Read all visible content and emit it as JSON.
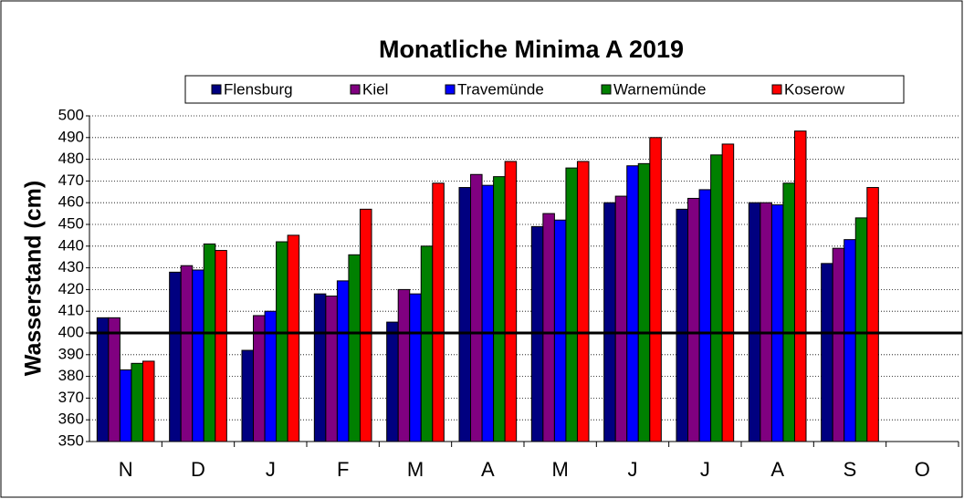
{
  "chart_data": {
    "type": "bar",
    "title": "Monatliche Minima A 2019",
    "y_label": "Wasserstand  (cm)",
    "categories": [
      "N",
      "D",
      "J",
      "F",
      "M",
      "A",
      "M",
      "J",
      "J",
      "A",
      "S",
      "O"
    ],
    "series": [
      {
        "name": "Flensburg",
        "color": "#000080",
        "values": [
          407,
          428,
          392,
          418,
          405,
          467,
          449,
          460,
          457,
          460,
          432,
          null
        ]
      },
      {
        "name": "Kiel",
        "color": "#800080",
        "values": [
          407,
          431,
          408,
          417,
          420,
          473,
          455,
          463,
          462,
          460,
          439,
          null
        ]
      },
      {
        "name": "Travemünde",
        "color": "#0000ff",
        "values": [
          383,
          429,
          410,
          424,
          418,
          468,
          452,
          477,
          466,
          459,
          443,
          null
        ]
      },
      {
        "name": "Warnemünde",
        "color": "#008000",
        "values": [
          386,
          441,
          442,
          436,
          440,
          472,
          476,
          478,
          482,
          469,
          453,
          null
        ]
      },
      {
        "name": "Koserow",
        "color": "#ff0000",
        "values": [
          387,
          438,
          445,
          457,
          469,
          479,
          479,
          490,
          487,
          493,
          467,
          null
        ]
      }
    ],
    "reference_line": 400,
    "ylim": [
      350,
      500
    ],
    "yticks": [
      350,
      360,
      370,
      380,
      390,
      400,
      410,
      420,
      430,
      440,
      450,
      460,
      470,
      480,
      490,
      500
    ],
    "grid": true,
    "legend": "top"
  }
}
